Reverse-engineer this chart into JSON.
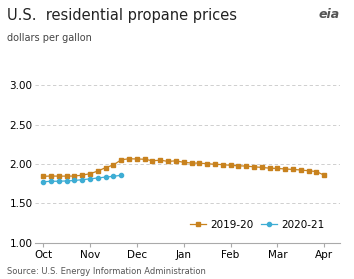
{
  "title": "U.S.  residential propane prices",
  "ylabel": "dollars per gallon",
  "source": "Source: U.S. Energy Information Administration",
  "ylim": [
    1.0,
    3.2
  ],
  "yticks": [
    1.0,
    1.5,
    2.0,
    2.5,
    3.0
  ],
  "x_labels": [
    "Oct",
    "Nov",
    "Dec",
    "Jan",
    "Feb",
    "Mar",
    "Apr"
  ],
  "series_2019_20": {
    "label": "2019-20",
    "color": "#c8821e",
    "x": [
      0,
      0.5,
      1,
      1.5,
      2,
      2.5,
      3,
      3.5,
      4,
      4.5,
      5,
      5.5,
      6,
      6.5,
      7,
      7.5,
      8,
      8.5,
      9,
      9.5,
      10,
      10.5,
      11,
      11.5,
      12,
      12.5,
      13,
      13.5,
      14,
      14.5,
      15,
      15.5,
      16,
      16.5,
      17,
      17.5,
      18
    ],
    "y": [
      1.845,
      1.848,
      1.847,
      1.847,
      1.848,
      1.86,
      1.878,
      1.912,
      1.955,
      1.99,
      2.055,
      2.068,
      2.065,
      2.062,
      2.042,
      2.05,
      2.034,
      2.042,
      2.022,
      2.014,
      2.012,
      2.005,
      1.998,
      1.993,
      1.985,
      1.978,
      1.975,
      1.965,
      1.958,
      1.948,
      1.945,
      1.938,
      1.932,
      1.925,
      1.915,
      1.905,
      1.858
    ]
  },
  "series_2020_21": {
    "label": "2020-21",
    "color": "#3eadd4",
    "x": [
      0,
      0.5,
      1,
      1.5,
      2,
      2.5,
      3,
      3.5,
      4,
      4.5,
      5
    ],
    "y": [
      1.775,
      1.782,
      1.782,
      1.786,
      1.792,
      1.802,
      1.812,
      1.824,
      1.835,
      1.845,
      1.858
    ]
  },
  "background_color": "#ffffff",
  "grid_color": "#c8c8c8",
  "title_fontsize": 10.5,
  "label_fontsize": 7,
  "tick_fontsize": 7.5,
  "legend_fontsize": 7.5,
  "x_tick_positions": [
    0,
    3,
    6,
    9,
    12,
    15,
    18
  ],
  "xlim": [
    -0.5,
    19.0
  ]
}
